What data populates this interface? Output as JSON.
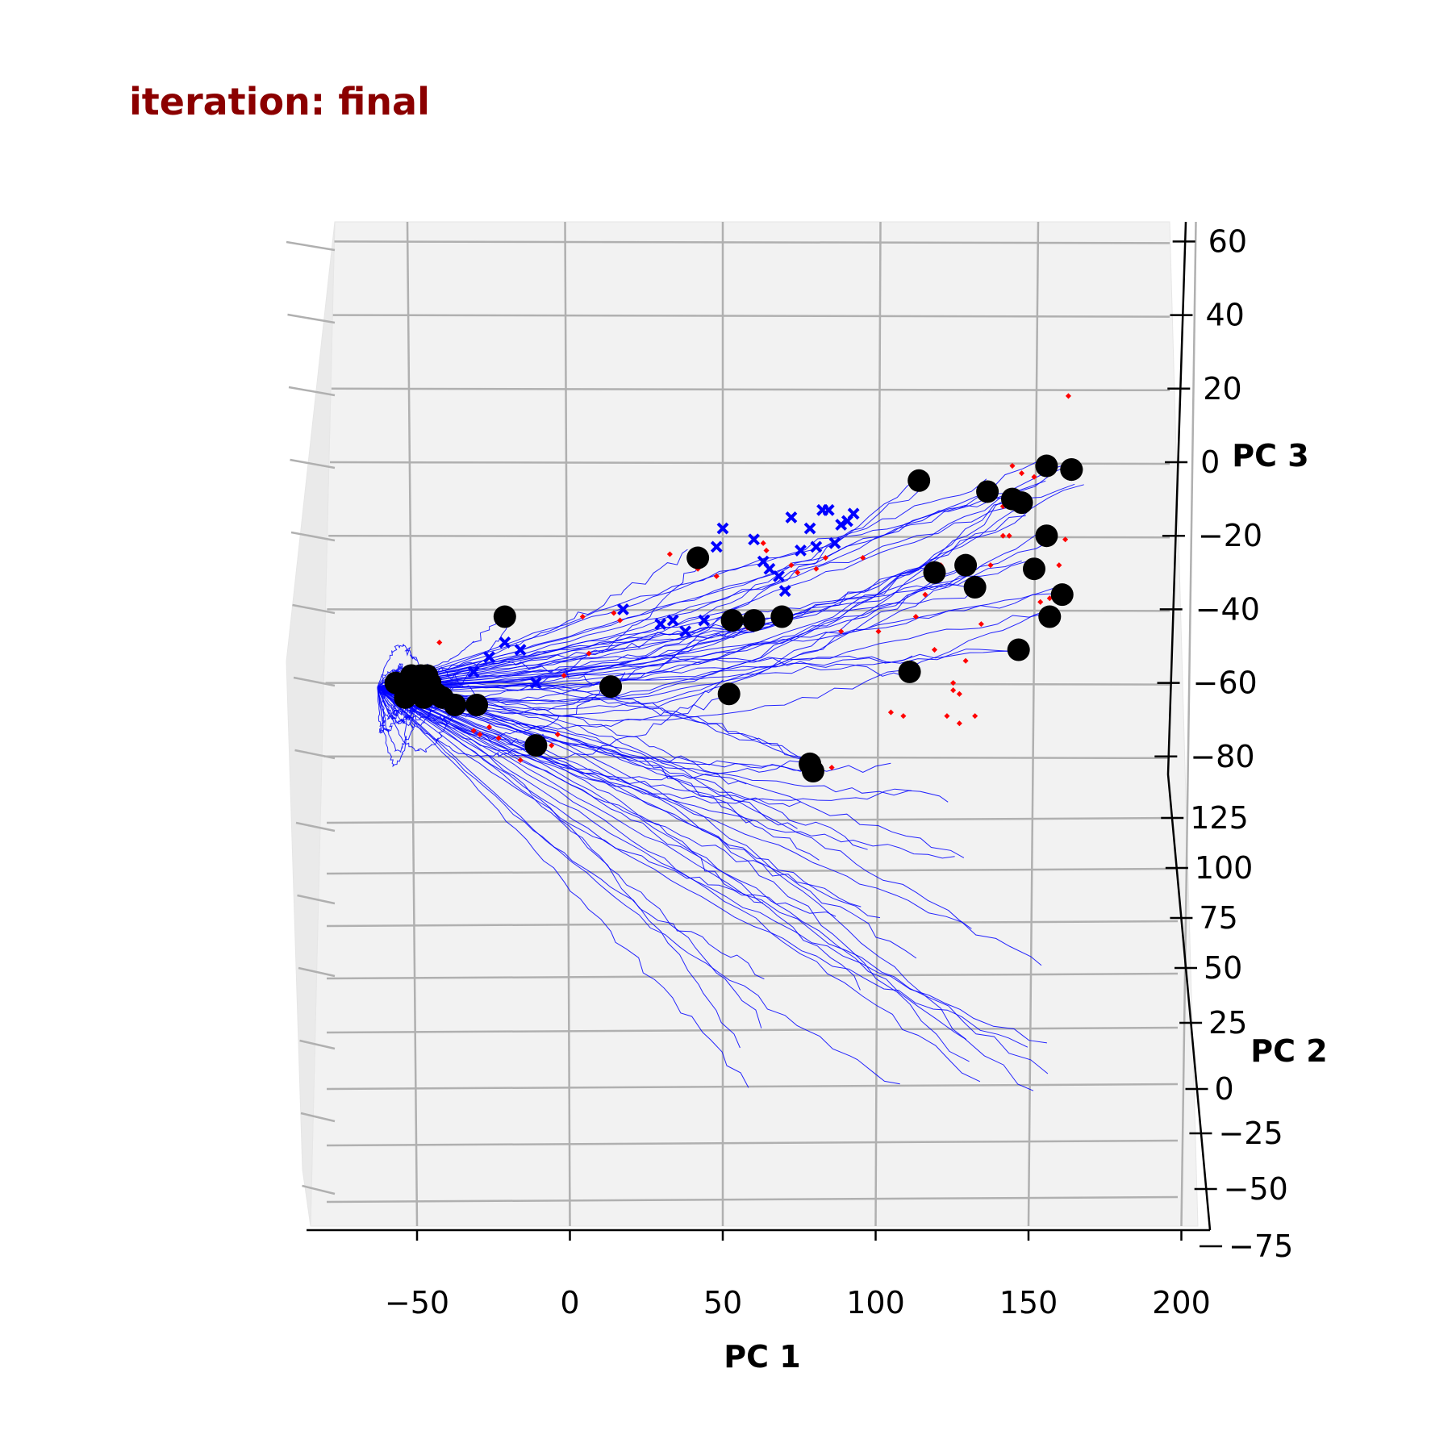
{
  "title": "iteration: final",
  "chart_data": {
    "type": "scatter",
    "projection": "3d",
    "xlabel": "PC 1",
    "ylabel": "PC 2",
    "zlabel": "PC 3",
    "xlim": [
      -83,
      200
    ],
    "ylim": [
      -75,
      135
    ],
    "zlim": [
      -86,
      62
    ],
    "xticks": [
      "−50",
      "0",
      "50",
      "100",
      "150",
      "200"
    ],
    "yticks": [
      "−75",
      "−50",
      "−25",
      "0",
      "25",
      "50",
      "75",
      "100",
      "125"
    ],
    "zticks": [
      "−80",
      "−60",
      "−40",
      "−20",
      "0",
      "20",
      "40",
      "60"
    ],
    "grid": true,
    "colors": {
      "trajectories": "#0000ff",
      "black_points": "#000000",
      "red_points": "#ff0000",
      "blue_x_markers": "#0000ff",
      "title": "#8b0000"
    },
    "series_style": [
      {
        "marker": "line",
        "color": "#0000ff",
        "description_role": "trajectories"
      },
      {
        "marker": "circle",
        "color": "#000000",
        "description_role": "end points"
      },
      {
        "marker": "dot",
        "color": "#ff0000"
      },
      {
        "marker": "x",
        "color": "#0000ff"
      }
    ],
    "black_points": [
      [
        -55,
        -60
      ],
      [
        -52,
        -60
      ],
      [
        -50,
        -58
      ],
      [
        -47,
        -58
      ],
      [
        -45,
        -58
      ],
      [
        -48,
        -62
      ],
      [
        -44,
        -60
      ],
      [
        -42,
        -63
      ],
      [
        -52,
        -64
      ],
      [
        -46,
        -64
      ],
      [
        -40,
        -64
      ],
      [
        -36,
        -66
      ],
      [
        -20,
        -42
      ],
      [
        -10,
        -77
      ],
      [
        -29,
        -66
      ],
      [
        14,
        -61
      ],
      [
        42,
        -26
      ],
      [
        53,
        -43
      ],
      [
        60,
        -43
      ],
      [
        69,
        -42
      ],
      [
        52,
        -63
      ],
      [
        78,
        -82
      ],
      [
        79,
        -84
      ],
      [
        110,
        -57
      ],
      [
        118,
        -30
      ],
      [
        113,
        -5
      ],
      [
        128,
        -28
      ],
      [
        131,
        -34
      ],
      [
        135,
        -8
      ],
      [
        143,
        -10
      ],
      [
        146,
        -11
      ],
      [
        154,
        -20
      ],
      [
        150,
        -29
      ],
      [
        154,
        -1
      ],
      [
        162,
        -2
      ],
      [
        162,
        -2
      ],
      [
        159,
        -36
      ],
      [
        155,
        -42
      ],
      [
        145,
        -51
      ]
    ],
    "blue_x_markers": [
      [
        -42,
        -60
      ],
      [
        -48,
        -60
      ],
      [
        -50,
        -58
      ],
      [
        -44,
        -63
      ],
      [
        -30,
        -57
      ],
      [
        -25,
        -53
      ],
      [
        -20,
        -49
      ],
      [
        -15,
        -51
      ],
      [
        -10,
        -60
      ],
      [
        18,
        -40
      ],
      [
        30,
        -44
      ],
      [
        34,
        -43
      ],
      [
        38,
        -46
      ],
      [
        44,
        -43
      ],
      [
        48,
        -23
      ],
      [
        50,
        -18
      ],
      [
        60,
        -21
      ],
      [
        63,
        -27
      ],
      [
        65,
        -29
      ],
      [
        68,
        -31
      ],
      [
        70,
        -35
      ],
      [
        72,
        -15
      ],
      [
        75,
        -24
      ],
      [
        78,
        -18
      ],
      [
        80,
        -23
      ],
      [
        82,
        -13
      ],
      [
        84,
        -13
      ],
      [
        86,
        -22
      ],
      [
        88,
        -17
      ],
      [
        90,
        -16
      ],
      [
        92,
        -14
      ]
    ],
    "red_points": [
      [
        -41,
        -49
      ],
      [
        -37,
        -64
      ],
      [
        -30,
        -73
      ],
      [
        -28,
        -74
      ],
      [
        -25,
        -72
      ],
      [
        -22,
        -75
      ],
      [
        -15,
        -81
      ],
      [
        -5,
        -77
      ],
      [
        -3,
        -74
      ],
      [
        -1,
        -58
      ],
      [
        7,
        -52
      ],
      [
        5,
        -42
      ],
      [
        15,
        -41
      ],
      [
        17,
        -43
      ],
      [
        33,
        -25
      ],
      [
        42,
        -29
      ],
      [
        48,
        -31
      ],
      [
        58,
        -45
      ],
      [
        63,
        -22
      ],
      [
        64,
        -24
      ],
      [
        72,
        -28
      ],
      [
        74,
        -30
      ],
      [
        80,
        -29
      ],
      [
        83,
        -26
      ],
      [
        85,
        -83
      ],
      [
        88,
        -46
      ],
      [
        95,
        -26
      ],
      [
        100,
        -46
      ],
      [
        104,
        -68
      ],
      [
        108,
        -69
      ],
      [
        112,
        -42
      ],
      [
        115,
        -36
      ],
      [
        120,
        -28
      ],
      [
        122,
        -69
      ],
      [
        124,
        -62
      ],
      [
        126,
        -63
      ],
      [
        128,
        -54
      ],
      [
        133,
        -44
      ],
      [
        136,
        -28
      ],
      [
        140,
        -20
      ],
      [
        142,
        -20
      ],
      [
        143,
        -1
      ],
      [
        146,
        -3
      ],
      [
        148,
        -12
      ],
      [
        150,
        -4
      ],
      [
        152,
        -38
      ],
      [
        155,
        -37
      ],
      [
        158,
        -28
      ],
      [
        160,
        -21
      ],
      [
        161,
        18
      ],
      [
        140,
        -12
      ],
      [
        131,
        -69
      ],
      [
        126,
        -71
      ],
      [
        124,
        -60
      ],
      [
        118,
        -51
      ]
    ]
  }
}
